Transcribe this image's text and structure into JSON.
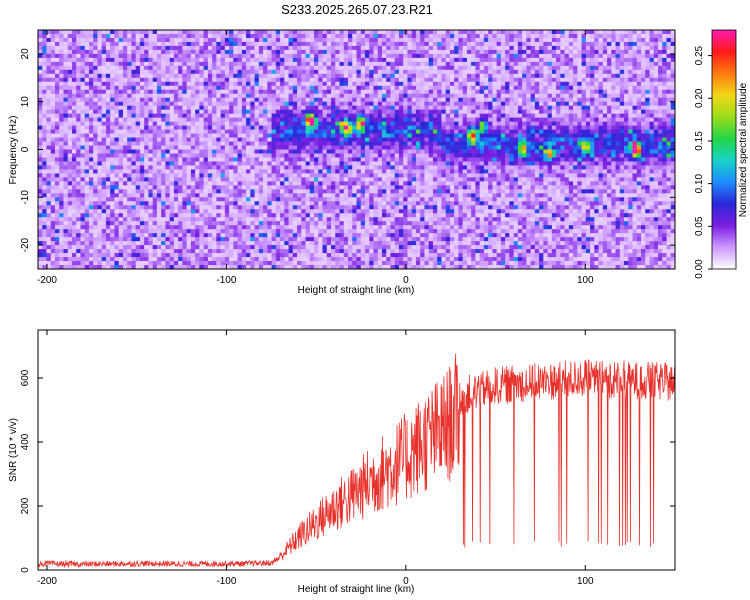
{
  "figure": {
    "title": "S233.2025.265.07.23.R21"
  },
  "colors": {
    "snr_line": "#e8302a",
    "colormap": [
      "#ffffff",
      "#cc99ff",
      "#7a1fe0",
      "#2a28d8",
      "#1e8cff",
      "#19d3c8",
      "#24d646",
      "#9bdc1c",
      "#f0d81a",
      "#ff7a10",
      "#ff1a1a",
      "#ff1ab0"
    ]
  },
  "chart_data": [
    {
      "type": "heatmap",
      "title": "",
      "xlabel": "Height of straight line (km)",
      "ylabel": "Frequency (Hz)",
      "xlim": [
        -205,
        150
      ],
      "ylim": [
        -25,
        25
      ],
      "x_ticks": [
        "-200",
        "-100",
        "0",
        "100"
      ],
      "x_tick_values": [
        -200,
        -100,
        0,
        100
      ],
      "y_ticks": [
        "-20",
        "-10",
        "0",
        "10",
        "20"
      ],
      "y_tick_values": [
        -20,
        -10,
        0,
        10,
        20
      ],
      "colorbar": {
        "label": "Normalized spectral amplitude",
        "range": [
          0,
          0.28
        ],
        "ticks": [
          "0.00",
          "0.05",
          "0.10",
          "0.15",
          "0.20",
          "0.25"
        ],
        "tick_values": [
          0,
          0.05,
          0.1,
          0.15,
          0.2,
          0.25
        ]
      },
      "hot_spots": [
        {
          "x": -53,
          "y": 6,
          "amp": 0.27
        },
        {
          "x": -33,
          "y": 4.5,
          "amp": 0.22
        },
        {
          "x": -25,
          "y": 5.5,
          "amp": 0.18
        },
        {
          "x": 37,
          "y": 3,
          "amp": 0.2
        },
        {
          "x": 43,
          "y": 5,
          "amp": 0.14
        },
        {
          "x": 65,
          "y": 0,
          "amp": 0.16
        },
        {
          "x": 80,
          "y": -1,
          "amp": 0.15
        },
        {
          "x": 100,
          "y": 0.5,
          "amp": 0.14
        },
        {
          "x": 128,
          "y": 0,
          "amp": 0.27
        }
      ]
    },
    {
      "type": "line",
      "title": "",
      "xlabel": "Height of straight line (km)",
      "ylabel": "SNR (10 * v/v)",
      "xlim": [
        -205,
        150
      ],
      "ylim": [
        0,
        750
      ],
      "x_ticks": [
        "-200",
        "-100",
        "0",
        "100"
      ],
      "x_tick_values": [
        -200,
        -100,
        0,
        100
      ],
      "y_ticks": [
        "0",
        "200",
        "400",
        "600"
      ],
      "y_tick_values": [
        0,
        200,
        400,
        600
      ],
      "series": [
        {
          "x": [
            -205,
            -180,
            -150,
            -120,
            -90,
            -75,
            -70,
            -60,
            -50,
            -40,
            -30,
            -20,
            -10,
            0,
            10,
            20,
            25,
            30,
            40,
            50,
            60,
            80,
            100,
            120,
            140,
            150
          ],
          "values": [
            20,
            18,
            20,
            19,
            20,
            22,
            45,
            110,
            160,
            210,
            250,
            300,
            340,
            380,
            430,
            470,
            500,
            540,
            560,
            575,
            580,
            590,
            600,
            595,
            590,
            585
          ],
          "dropouts_min": 70
        }
      ]
    }
  ]
}
